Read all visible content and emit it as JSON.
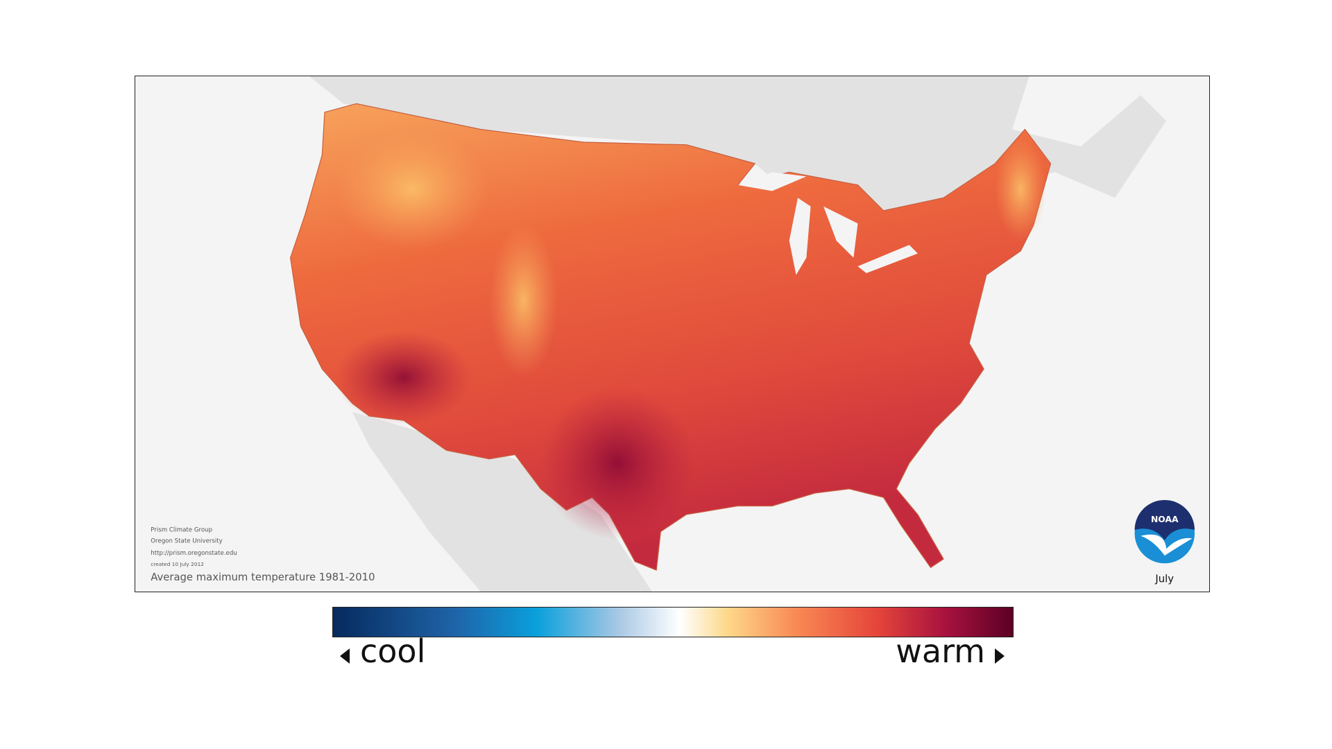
{
  "map": {
    "credits": [
      "Prism Climate Group",
      "Oregon State University",
      "http://prism.oregonstate.edu",
      "created 10 July 2012"
    ],
    "caption": "Average maximum temperature 1981-2010",
    "logo": "NOAA",
    "month": "July"
  },
  "legend": {
    "low_label": "cool",
    "high_label": "warm"
  }
}
